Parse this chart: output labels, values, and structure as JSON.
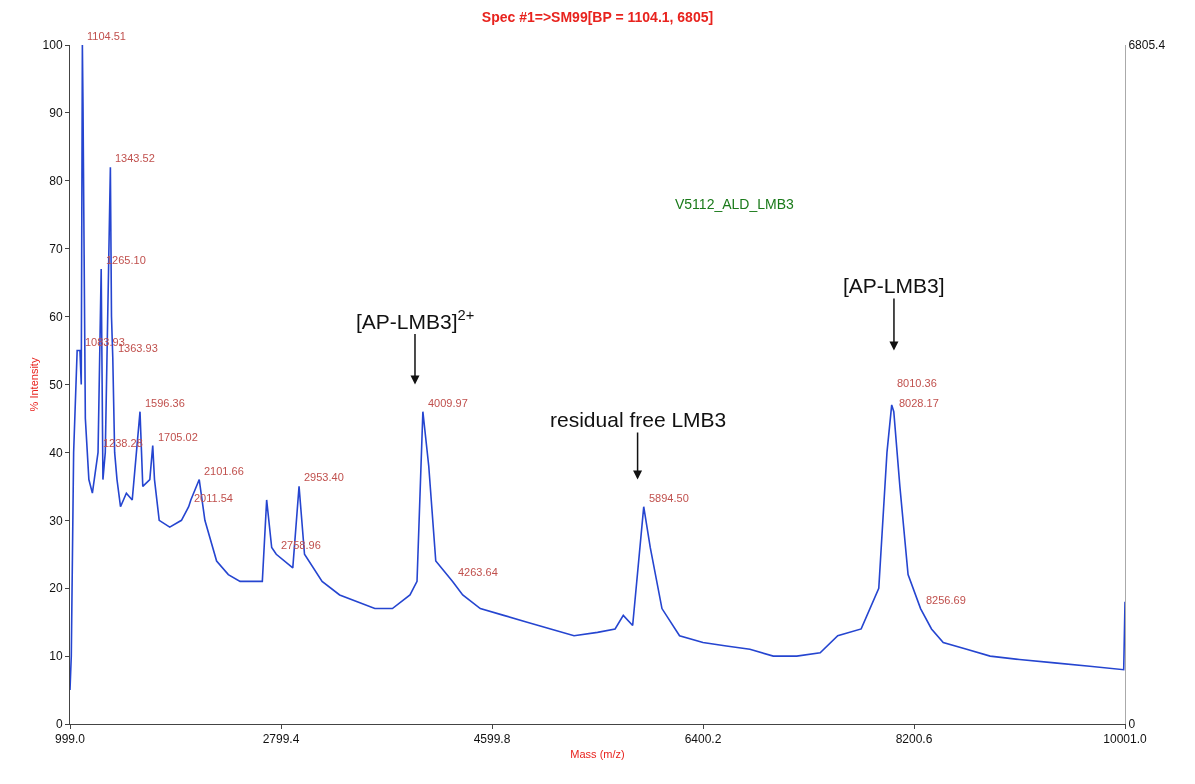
{
  "chart_data": {
    "type": "line",
    "title": "Spec #1=>SM99[BP = 1104.1, 6805]",
    "xlabel": "Mass (m/z)",
    "ylabel": "% Intensity",
    "xlim": [
      999.0,
      10001.0
    ],
    "xticks": [
      {
        "value": 999.0,
        "label": "999.0"
      },
      {
        "value": 2799.4,
        "label": "2799.4"
      },
      {
        "value": 4599.8,
        "label": "4599.8"
      },
      {
        "value": 6400.2,
        "label": "6400.2"
      },
      {
        "value": 8200.6,
        "label": "8200.6"
      },
      {
        "value": 10001.0,
        "label": "10001.0"
      }
    ],
    "ylim": [
      0,
      100
    ],
    "yticks": [
      0,
      10,
      20,
      30,
      40,
      50,
      60,
      70,
      80,
      90,
      100
    ],
    "y2lim": [
      0,
      6805.4
    ],
    "y2ticks": [
      0,
      6805.4
    ],
    "grid": false,
    "annotations": [
      "[AP-LMB3]$^{2+}$",
      "residual free LMB3",
      "[AP-LMB3]",
      "V5112_ALD_LMB3",
      {
        "text": "1083.93",
        "x": 1083.93,
        "y": 55
      },
      {
        "text": "1104.51",
        "x": 1104.51,
        "y": 100
      },
      {
        "text": "1238.28",
        "x": 1238.28,
        "y": 40
      },
      {
        "text": "1265.10",
        "x": 1265.1,
        "y": 67
      },
      {
        "text": "1343.52",
        "x": 1343.52,
        "y": 82
      },
      {
        "text": "1363.93",
        "x": 1363.93,
        "y": 54
      },
      {
        "text": "1596.36",
        "x": 1596.36,
        "y": 46
      },
      {
        "text": "1705.02",
        "x": 1705.02,
        "y": 41
      },
      {
        "text": "2011.54",
        "x": 2011.54,
        "y": 32
      },
      {
        "text": "2101.66",
        "x": 2101.66,
        "y": 36
      },
      {
        "text": "2758.96",
        "x": 2758.96,
        "y": 25
      },
      {
        "text": "2953.40",
        "x": 2953.4,
        "y": 35
      },
      {
        "text": "4009.97",
        "x": 4009.97,
        "y": 46
      },
      {
        "text": "4263.64",
        "x": 4263.64,
        "y": 21
      },
      {
        "text": "5894.50",
        "x": 5894.5,
        "y": 32
      },
      {
        "text": "8010.36",
        "x": 8010.36,
        "y": 47
      },
      {
        "text": "8028.17",
        "x": 8028.17,
        "y": 46
      },
      {
        "text": "8256.69",
        "x": 8256.69,
        "y": 17
      }
    ],
    "series": [
      {
        "color": "#2545d0",
        "x": [
          999,
          1010,
          1030,
          1060,
          1083.93,
          1095,
          1104.51,
          1110,
          1130,
          1160,
          1190,
          1238.28,
          1265.1,
          1280,
          1300,
          1343.52,
          1353,
          1363.93,
          1380,
          1400,
          1430,
          1480,
          1530,
          1596.36,
          1620,
          1680,
          1705.02,
          1720,
          1760,
          1850,
          1950,
          2011.54,
          2030,
          2101.66,
          2150,
          2250,
          2350,
          2450,
          2560,
          2640,
          2677,
          2720,
          2758.96,
          2900,
          2953.4,
          3000,
          3150,
          3300,
          3450,
          3600,
          3750,
          3900,
          3960,
          4009.97,
          4060,
          4120,
          4263.64,
          4350,
          4500,
          4700,
          4900,
          5100,
          5300,
          5500,
          5650,
          5720,
          5800,
          5894.5,
          5950,
          6050,
          6200,
          6400,
          6600,
          6800,
          7000,
          7200,
          7400,
          7550,
          7750,
          7900,
          7970,
          8010.36,
          8028.17,
          8080,
          8150,
          8256.69,
          8350,
          8450,
          8650,
          8850,
          9100,
          9400,
          9700,
          9990,
          10001
        ],
        "values": [
          5,
          10,
          40,
          55,
          55,
          50,
          100,
          91,
          45,
          36,
          34,
          40,
          67,
          36,
          40,
          82,
          60,
          54,
          40,
          36,
          32,
          34,
          33,
          46,
          35,
          36,
          41,
          36,
          30,
          29,
          30,
          32,
          33,
          36,
          30,
          24,
          22,
          21,
          21,
          21,
          33,
          26,
          25,
          23,
          35,
          25,
          21,
          19,
          18,
          17,
          17,
          19,
          21,
          46,
          38,
          24,
          21,
          19,
          17,
          16,
          15,
          14,
          13,
          13.5,
          14,
          16,
          14.5,
          32,
          26,
          17,
          13,
          12,
          11.5,
          11,
          10,
          10,
          10.5,
          13,
          14,
          20,
          40,
          47,
          46,
          35,
          22,
          17,
          14,
          12,
          11,
          10,
          9.5,
          9,
          8.5,
          8,
          18
        ]
      }
    ]
  }
}
